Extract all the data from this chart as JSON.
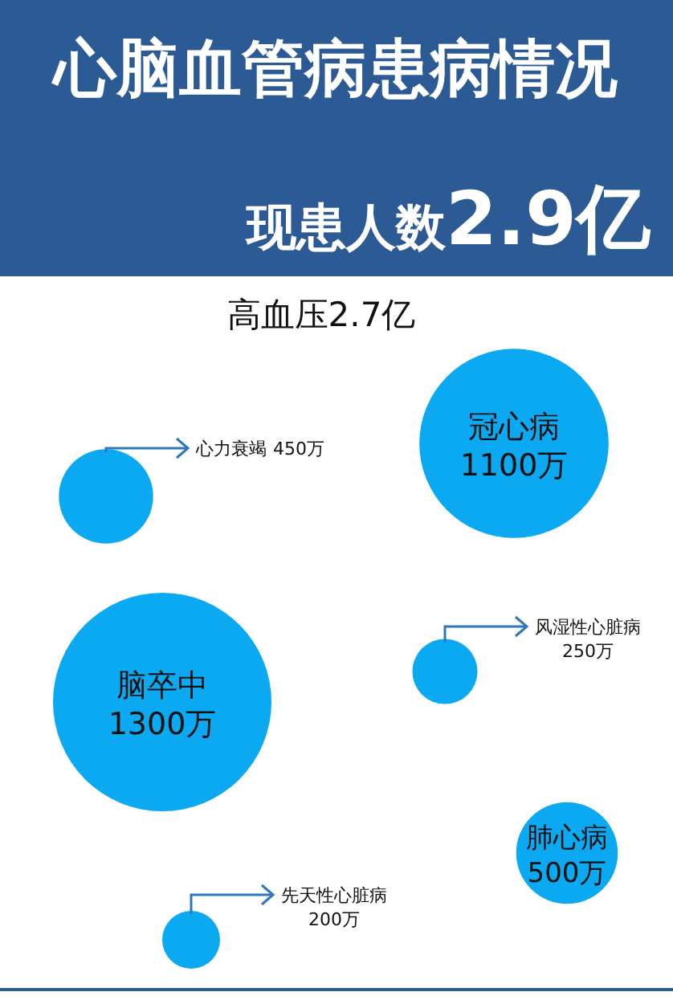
{
  "chart_data": {
    "type": "other",
    "title": "心脑血管病患病情况",
    "subtitle": [
      "现患人数",
      "2.9亿"
    ],
    "annotations": [
      "高血压2.7亿"
    ],
    "categories": [
      "心力衰竭",
      "冠心病",
      "脑卒中",
      "风湿性心脏病",
      "肺心病",
      "先天性心脏病"
    ],
    "values": [
      450,
      1100,
      1300,
      250,
      500,
      200
    ],
    "value_labels": [
      "450万",
      "1100万",
      "1300万",
      "250万",
      "500万",
      "200万"
    ],
    "colors": [
      "#0aa9f2",
      "#0aa9f2",
      "#0aa9f2",
      "#0aa9f2",
      "#0aa9f2",
      "#0aa9f2"
    ]
  }
}
